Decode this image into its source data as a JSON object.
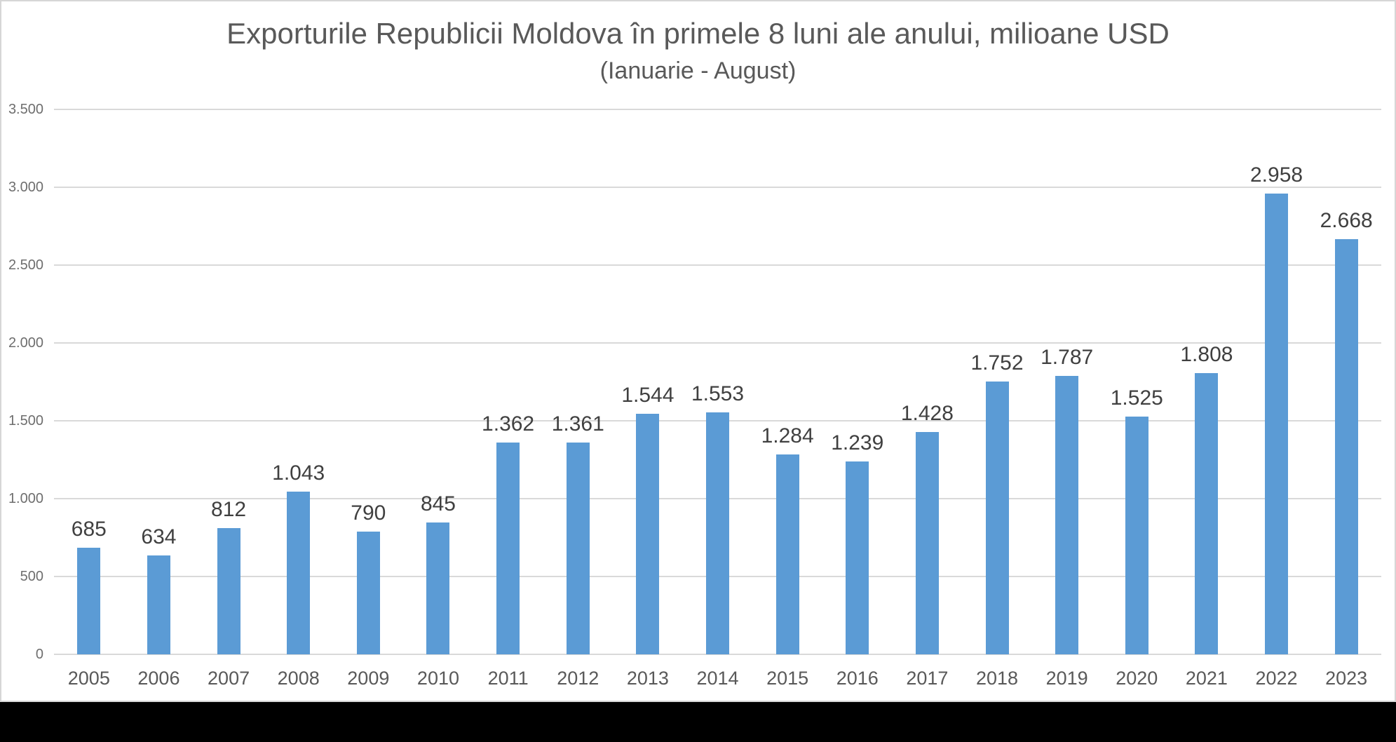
{
  "page": {
    "slide_background": "#FFFFFF",
    "outer_background": "#000000",
    "slide_border_color": "#D6D6D6"
  },
  "chart_data": {
    "type": "bar",
    "title": "Exporturile Republicii Moldova în primele 8 luni ale anului, milioane USD",
    "subtitle": "(Ianuarie - August)",
    "categories": [
      "2005",
      "2006",
      "2007",
      "2008",
      "2009",
      "2010",
      "2011",
      "2012",
      "2013",
      "2014",
      "2015",
      "2016",
      "2017",
      "2018",
      "2019",
      "2020",
      "2021",
      "2022",
      "2023"
    ],
    "values": [
      685,
      634,
      812,
      1043,
      790,
      845,
      1362,
      1361,
      1544,
      1553,
      1284,
      1239,
      1428,
      1752,
      1787,
      1525,
      1808,
      2958,
      2668
    ],
    "value_labels": [
      "685",
      "634",
      "812",
      "1.043",
      "790",
      "845",
      "1.362",
      "1.361",
      "1.544",
      "1.553",
      "1.284",
      "1.239",
      "1.428",
      "1.752",
      "1.787",
      "1.525",
      "1.808",
      "2.958",
      "2.668"
    ],
    "xlabel": "",
    "ylabel": "",
    "ylim": [
      0,
      3500
    ],
    "y_ticks": [
      0,
      500,
      1000,
      1500,
      2000,
      2500,
      3000,
      3500
    ],
    "y_tick_labels": [
      "0",
      "500",
      "1.000",
      "1.500",
      "2.000",
      "2.500",
      "3.000",
      "3.500"
    ],
    "grid": true,
    "legend": false,
    "bar_color": "#5B9BD5",
    "gridline_color": "#D9D9D9",
    "data_label_color": "#404040",
    "axis_label_color": "#595959"
  }
}
